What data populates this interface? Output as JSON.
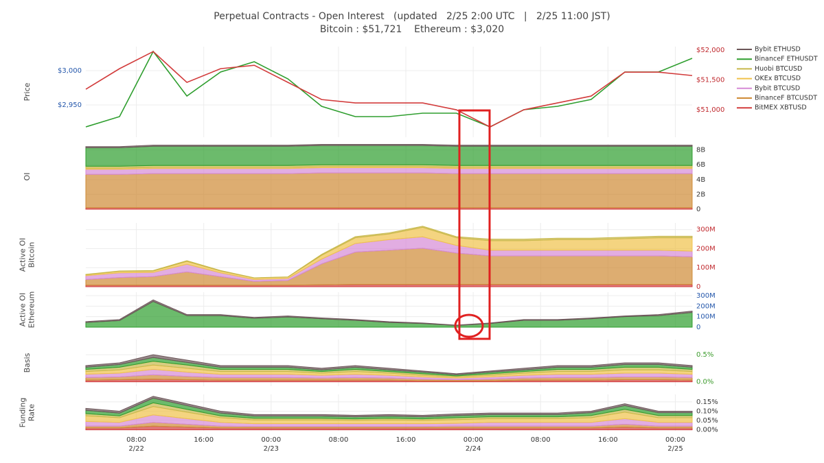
{
  "chart_data": {
    "title": "Perpetual Contracts - Open Interest   (updated   2/25 2:00 UTC   |   2/25 11:00 JST)",
    "subtitle": "Bitcoin : $51,721    Ethereum : $3,020",
    "x": [
      2,
      6,
      10,
      14,
      18,
      22,
      26,
      30,
      34,
      38,
      42,
      46,
      50,
      54,
      58,
      62,
      66,
      70,
      74
    ],
    "xlim": [
      2,
      74
    ],
    "xticks": [
      {
        "value": 8,
        "label": "08:00",
        "sublabel": "2/22"
      },
      {
        "value": 16,
        "label": "16:00"
      },
      {
        "value": 24,
        "label": "00:00",
        "sublabel": "2/23"
      },
      {
        "value": 32,
        "label": "08:00"
      },
      {
        "value": 40,
        "label": "16:00"
      },
      {
        "value": 48,
        "label": "00:00",
        "sublabel": "2/24"
      },
      {
        "value": 56,
        "label": "08:00"
      },
      {
        "value": 64,
        "label": "16:00"
      },
      {
        "value": 72,
        "label": "00:00",
        "sublabel": "2/25"
      }
    ],
    "grid": true,
    "legend_position": "right",
    "legend": [
      {
        "name": "Bybit ETHUSD",
        "color": "#6b5558"
      },
      {
        "name": "BinanceF ETHUSDT",
        "color": "#2e9e2e"
      },
      {
        "name": "Huobi BTCUSD",
        "color": "#c8b84a"
      },
      {
        "name": "OKEx BTCUSD",
        "color": "#f0c24a"
      },
      {
        "name": "Bybit BTCUSD",
        "color": "#d68ad6"
      },
      {
        "name": "BinanceF BTCUSDT",
        "color": "#cf8a35"
      },
      {
        "name": "BitMEX XBTUSD",
        "color": "#d23b3b"
      }
    ],
    "panels": [
      {
        "type": "line",
        "ylabel": [
          "Price"
        ],
        "ylim": [
          2903,
          3035
        ],
        "yticks": [
          {
            "value": 3000,
            "label": "$3,000"
          },
          {
            "value": 2950,
            "label": "$2,950"
          }
        ],
        "tick_color": "#2255aa",
        "y2lim": [
          50540,
          52060
        ],
        "y2ticks": [
          {
            "value": 52000,
            "label": "$52,000"
          },
          {
            "value": 51500,
            "label": "$51,500"
          },
          {
            "value": 51000,
            "label": "$51,000"
          }
        ],
        "y2tick_color": "#c0282d",
        "series": [
          {
            "name": "BinanceF ETHUSDT",
            "values": [
              2918,
              2933,
              3028,
              2963,
              2998,
              3013,
              2988,
              2948,
              2933,
              2933,
              2938,
              2938,
              2918,
              2943,
              2948,
              2958,
              2998,
              2998,
              3018
            ]
          },
          {
            "name": "BitMEX XBTUSD",
            "axis": "y2",
            "values": [
              51345,
              51690,
              51977,
              51460,
              51690,
              51747,
              51460,
              51172,
              51115,
              51115,
              51115,
              51000,
              50712,
              51000,
              51115,
              51230,
              51632,
              51632,
              51575
            ]
          }
        ]
      },
      {
        "type": "stacked_area",
        "ylabel": [
          "OI"
        ],
        "ylim": [
          0,
          8.8
        ],
        "yticks": [
          {
            "value": 0,
            "label": "0"
          },
          {
            "value": 2,
            "label": "2B"
          },
          {
            "value": 4,
            "label": "4B"
          },
          {
            "value": 6,
            "label": "6B"
          },
          {
            "value": 8,
            "label": "8B"
          }
        ],
        "tick_color": "#333333",
        "series": [
          {
            "name": "BitMEX XBTUSD",
            "values": [
              0.2,
              0.2,
              0.2,
              0.2,
              0.2,
              0.2,
              0.2,
              0.2,
              0.2,
              0.2,
              0.2,
              0.2,
              0.2,
              0.2,
              0.2,
              0.2,
              0.2,
              0.2,
              0.2
            ]
          },
          {
            "name": "BinanceF BTCUSDT",
            "values": [
              4.5,
              4.5,
              4.6,
              4.6,
              4.6,
              4.6,
              4.6,
              4.7,
              4.7,
              4.7,
              4.7,
              4.6,
              4.6,
              4.6,
              4.6,
              4.6,
              4.6,
              4.6,
              4.6
            ]
          },
          {
            "name": "Bybit BTCUSD",
            "values": [
              0.7,
              0.7,
              0.7,
              0.7,
              0.7,
              0.7,
              0.7,
              0.7,
              0.7,
              0.7,
              0.7,
              0.7,
              0.7,
              0.7,
              0.7,
              0.7,
              0.7,
              0.7,
              0.7
            ]
          },
          {
            "name": "OKEx BTCUSD",
            "values": [
              0.15,
              0.15,
              0.15,
              0.15,
              0.15,
              0.15,
              0.15,
              0.15,
              0.15,
              0.15,
              0.15,
              0.15,
              0.15,
              0.15,
              0.15,
              0.15,
              0.15,
              0.15,
              0.15
            ]
          },
          {
            "name": "Huobi BTCUSD",
            "values": [
              0.25,
              0.25,
              0.25,
              0.25,
              0.25,
              0.25,
              0.25,
              0.25,
              0.25,
              0.25,
              0.25,
              0.25,
              0.25,
              0.25,
              0.25,
              0.25,
              0.25,
              0.25,
              0.25
            ]
          },
          {
            "name": "BinanceF ETHUSDT",
            "values": [
              2.5,
              2.5,
              2.6,
              2.6,
              2.6,
              2.6,
              2.6,
              2.6,
              2.6,
              2.6,
              2.6,
              2.6,
              2.6,
              2.6,
              2.6,
              2.6,
              2.6,
              2.6,
              2.6
            ]
          },
          {
            "name": "Bybit ETHUSD",
            "values": [
              0.15,
              0.15,
              0.15,
              0.15,
              0.15,
              0.15,
              0.15,
              0.15,
              0.15,
              0.15,
              0.15,
              0.15,
              0.15,
              0.15,
              0.15,
              0.15,
              0.15,
              0.15,
              0.15
            ]
          }
        ]
      },
      {
        "type": "stacked_area",
        "ylabel": [
          "Active OI",
          "Bitcoin"
        ],
        "ylim": [
          0,
          335
        ],
        "yticks": [
          {
            "value": 0,
            "label": "0"
          },
          {
            "value": 100,
            "label": "100M"
          },
          {
            "value": 200,
            "label": "200M"
          },
          {
            "value": 300,
            "label": "300M"
          }
        ],
        "tick_color": "#c0282d",
        "series": [
          {
            "name": "BitMEX XBTUSD",
            "values": [
              8,
              8,
              8,
              8,
              8,
              8,
              8,
              10,
              12,
              12,
              12,
              12,
              12,
              12,
              12,
              12,
              12,
              12,
              12
            ]
          },
          {
            "name": "BinanceF BTCUSDT",
            "values": [
              30,
              40,
              45,
              70,
              45,
              20,
              25,
              110,
              170,
              180,
              190,
              165,
              150,
              150,
              150,
              150,
              150,
              150,
              145
            ]
          },
          {
            "name": "Bybit BTCUSD",
            "values": [
              20,
              25,
              22,
              40,
              20,
              10,
              10,
              25,
              45,
              55,
              60,
              40,
              30,
              30,
              30,
              30,
              30,
              30,
              30
            ]
          },
          {
            "name": "OKEx BTCUSD",
            "values": [
              5,
              8,
              8,
              15,
              10,
              8,
              8,
              20,
              30,
              30,
              50,
              40,
              50,
              50,
              55,
              55,
              60,
              65,
              70
            ]
          },
          {
            "name": "Huobi BTCUSD",
            "values": [
              2,
              2,
              2,
              4,
              2,
              1,
              1,
              5,
              6,
              6,
              6,
              6,
              8,
              8,
              8,
              8,
              8,
              8,
              8
            ]
          }
        ]
      },
      {
        "type": "stacked_area",
        "ylabel": [
          "Active OI",
          "Ethereum"
        ],
        "ylim": [
          0,
          333
        ],
        "yticks": [
          {
            "value": 0,
            "label": "0"
          },
          {
            "value": 100,
            "label": "100M"
          },
          {
            "value": 200,
            "label": "200M"
          },
          {
            "value": 300,
            "label": "300M"
          }
        ],
        "tick_color": "#2255aa",
        "series": [
          {
            "name": "BinanceF ETHUSDT",
            "values": [
              45,
              63,
              245,
              110,
              110,
              85,
              97,
              80,
              65,
              45,
              35,
              16,
              35,
              65,
              65,
              80,
              100,
              110,
              140
            ]
          },
          {
            "name": "Bybit ETHUSD",
            "values": [
              8,
              10,
              15,
              10,
              10,
              8,
              10,
              8,
              8,
              7,
              5,
              4,
              5,
              8,
              8,
              7,
              7,
              10,
              13
            ]
          }
        ]
      },
      {
        "type": "stacked_area",
        "ylabel": [
          "Basis"
        ],
        "ylim": [
          -0.08,
          0.78
        ],
        "yticks": [
          {
            "value": 0,
            "label": "0.0%"
          },
          {
            "value": 0.5,
            "label": "0.5%"
          }
        ],
        "tick_color": "#3a9a2a",
        "series": [
          {
            "name": "BitMEX XBTUSD",
            "values": [
              0.03,
              0.04,
              0.05,
              0.04,
              0.03,
              0.03,
              0.03,
              0.03,
              0.03,
              0.03,
              0.02,
              0.02,
              0.02,
              0.03,
              0.03,
              0.03,
              0.04,
              0.04,
              0.03
            ]
          },
          {
            "name": "BinanceF BTCUSDT",
            "values": [
              0.05,
              0.05,
              0.08,
              0.06,
              0.05,
              0.05,
              0.05,
              0.04,
              0.05,
              0.04,
              0.03,
              0.02,
              0.03,
              0.04,
              0.05,
              0.05,
              0.05,
              0.05,
              0.05
            ]
          },
          {
            "name": "Bybit BTCUSD",
            "values": [
              0.06,
              0.07,
              0.1,
              0.08,
              0.06,
              0.06,
              0.06,
              0.05,
              0.06,
              0.05,
              0.04,
              0.03,
              0.04,
              0.05,
              0.06,
              0.06,
              0.07,
              0.07,
              0.06
            ]
          },
          {
            "name": "OKEx BTCUSD",
            "values": [
              0.05,
              0.06,
              0.08,
              0.07,
              0.05,
              0.05,
              0.05,
              0.04,
              0.05,
              0.04,
              0.03,
              0.02,
              0.03,
              0.04,
              0.05,
              0.05,
              0.06,
              0.06,
              0.05
            ]
          },
          {
            "name": "Huobi BTCUSD",
            "values": [
              0.04,
              0.05,
              0.07,
              0.06,
              0.04,
              0.04,
              0.04,
              0.03,
              0.04,
              0.03,
              0.03,
              0.02,
              0.03,
              0.03,
              0.04,
              0.04,
              0.05,
              0.05,
              0.04
            ]
          },
          {
            "name": "BinanceF ETHUSDT",
            "values": [
              0.04,
              0.05,
              0.07,
              0.05,
              0.04,
              0.04,
              0.04,
              0.03,
              0.04,
              0.03,
              0.03,
              0.02,
              0.03,
              0.03,
              0.04,
              0.04,
              0.05,
              0.05,
              0.04
            ]
          },
          {
            "name": "Bybit ETHUSD",
            "values": [
              0.03,
              0.03,
              0.05,
              0.04,
              0.03,
              0.03,
              0.03,
              0.03,
              0.03,
              0.03,
              0.02,
              0.02,
              0.02,
              0.03,
              0.03,
              0.03,
              0.03,
              0.03,
              0.03
            ]
          }
        ]
      },
      {
        "type": "stacked_area",
        "ylabel": [
          "Funding",
          "Rate"
        ],
        "ylim": [
          -0.005,
          0.19
        ],
        "yticks": [
          {
            "value": 0,
            "label": "0.00%"
          },
          {
            "value": 0.05,
            "label": "0.05%"
          },
          {
            "value": 0.1,
            "label": "0.10%"
          },
          {
            "value": 0.15,
            "label": "0.15%"
          }
        ],
        "tick_color": "#333333",
        "series": [
          {
            "name": "BitMEX XBTUSD",
            "values": [
              0.01,
              0.01,
              0.02,
              0.015,
              0.01,
              0.01,
              0.01,
              0.01,
              0.01,
              0.01,
              0.01,
              0.01,
              0.01,
              0.01,
              0.01,
              0.01,
              0.015,
              0.01,
              0.01
            ]
          },
          {
            "name": "BinanceF BTCUSDT",
            "values": [
              0.01,
              0.01,
              0.02,
              0.015,
              0.01,
              0.008,
              0.008,
              0.008,
              0.008,
              0.008,
              0.008,
              0.01,
              0.01,
              0.01,
              0.01,
              0.01,
              0.015,
              0.01,
              0.01
            ]
          },
          {
            "name": "Bybit BTCUSD",
            "values": [
              0.025,
              0.02,
              0.04,
              0.03,
              0.02,
              0.015,
              0.015,
              0.015,
              0.015,
              0.015,
              0.015,
              0.015,
              0.02,
              0.02,
              0.02,
              0.02,
              0.03,
              0.02,
              0.02
            ]
          },
          {
            "name": "OKEx BTCUSD",
            "values": [
              0.03,
              0.025,
              0.045,
              0.035,
              0.025,
              0.02,
              0.02,
              0.02,
              0.018,
              0.02,
              0.018,
              0.02,
              0.02,
              0.02,
              0.02,
              0.025,
              0.035,
              0.025,
              0.025
            ]
          },
          {
            "name": "Huobi BTCUSD",
            "values": [
              0.012,
              0.01,
              0.02,
              0.015,
              0.01,
              0.009,
              0.009,
              0.009,
              0.008,
              0.009,
              0.008,
              0.01,
              0.01,
              0.01,
              0.01,
              0.012,
              0.015,
              0.012,
              0.012
            ]
          },
          {
            "name": "BinanceF ETHUSDT",
            "values": [
              0.018,
              0.015,
              0.025,
              0.02,
              0.015,
              0.012,
              0.012,
              0.012,
              0.011,
              0.012,
              0.011,
              0.012,
              0.012,
              0.012,
              0.012,
              0.015,
              0.02,
              0.015,
              0.015
            ]
          },
          {
            "name": "Bybit ETHUSD",
            "values": [
              0.01,
              0.01,
              0.01,
              0.01,
              0.01,
              0.008,
              0.008,
              0.008,
              0.008,
              0.008,
              0.008,
              0.008,
              0.008,
              0.008,
              0.008,
              0.008,
              0.01,
              0.008,
              0.008
            ]
          }
        ]
      }
    ]
  }
}
